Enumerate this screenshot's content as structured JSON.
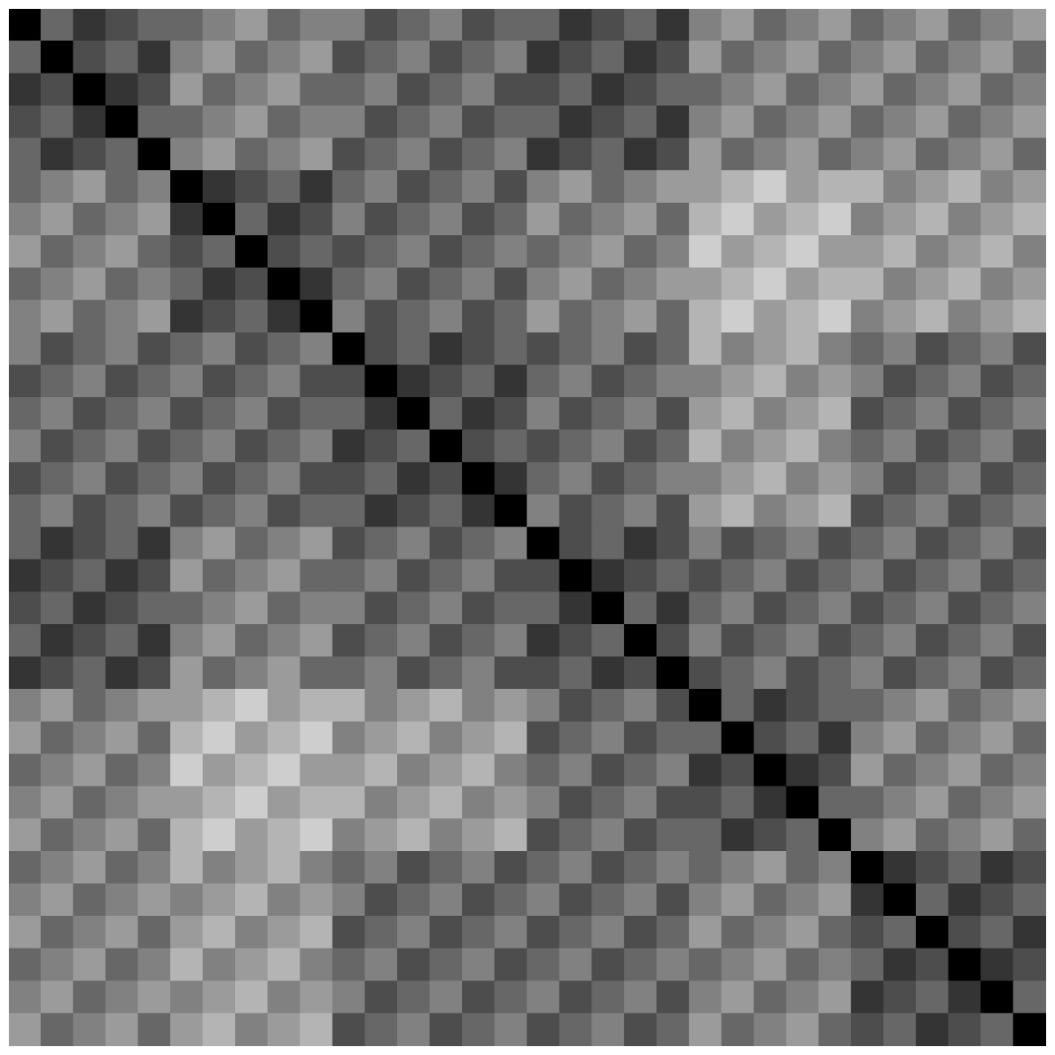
{
  "chart_data": {
    "type": "heatmap",
    "tick_labels": false,
    "value_range": [
      0,
      9
    ],
    "cells": [
      [
        0,
        4,
        2,
        3,
        4,
        4,
        5,
        6,
        4,
        5,
        5,
        3,
        4,
        5,
        3,
        4,
        4,
        2,
        3,
        4,
        2,
        5,
        6,
        4,
        5,
        6,
        4,
        5,
        6,
        4,
        5,
        6
      ],
      [
        4,
        0,
        3,
        4,
        2,
        5,
        6,
        4,
        5,
        6,
        3,
        4,
        5,
        3,
        4,
        5,
        2,
        3,
        4,
        2,
        3,
        6,
        4,
        5,
        6,
        4,
        5,
        6,
        4,
        5,
        6,
        4
      ],
      [
        2,
        3,
        0,
        2,
        3,
        6,
        4,
        5,
        6,
        4,
        4,
        5,
        3,
        4,
        5,
        3,
        3,
        4,
        2,
        3,
        4,
        4,
        5,
        6,
        4,
        5,
        6,
        4,
        5,
        6,
        4,
        5
      ],
      [
        3,
        4,
        2,
        0,
        4,
        4,
        5,
        6,
        4,
        5,
        5,
        3,
        4,
        5,
        3,
        4,
        4,
        2,
        3,
        4,
        2,
        5,
        6,
        4,
        5,
        6,
        4,
        5,
        6,
        4,
        5,
        6
      ],
      [
        4,
        2,
        3,
        4,
        0,
        5,
        6,
        4,
        5,
        6,
        3,
        4,
        5,
        3,
        4,
        5,
        2,
        3,
        4,
        2,
        3,
        6,
        4,
        5,
        6,
        4,
        5,
        6,
        4,
        5,
        6,
        4
      ],
      [
        4,
        5,
        6,
        4,
        5,
        0,
        2,
        3,
        4,
        2,
        4,
        5,
        3,
        4,
        5,
        3,
        5,
        6,
        4,
        5,
        6,
        6,
        7,
        8,
        6,
        7,
        7,
        5,
        6,
        7,
        5,
        6
      ],
      [
        5,
        6,
        4,
        5,
        6,
        2,
        0,
        4,
        2,
        3,
        5,
        3,
        4,
        5,
        3,
        4,
        6,
        4,
        5,
        6,
        4,
        7,
        8,
        6,
        7,
        8,
        5,
        6,
        7,
        5,
        6,
        7
      ],
      [
        6,
        4,
        5,
        6,
        4,
        3,
        4,
        0,
        3,
        4,
        3,
        4,
        5,
        3,
        4,
        5,
        4,
        5,
        6,
        4,
        5,
        8,
        6,
        7,
        8,
        6,
        6,
        7,
        5,
        6,
        7,
        5
      ],
      [
        4,
        5,
        6,
        4,
        5,
        4,
        2,
        3,
        0,
        2,
        4,
        5,
        3,
        4,
        5,
        3,
        5,
        6,
        4,
        5,
        6,
        6,
        7,
        8,
        6,
        7,
        7,
        5,
        6,
        7,
        5,
        6
      ],
      [
        5,
        6,
        4,
        5,
        6,
        2,
        3,
        4,
        2,
        0,
        5,
        3,
        4,
        5,
        3,
        4,
        6,
        4,
        5,
        6,
        4,
        7,
        8,
        6,
        7,
        8,
        5,
        6,
        7,
        5,
        6,
        7
      ],
      [
        5,
        3,
        4,
        5,
        3,
        4,
        5,
        3,
        4,
        5,
        0,
        3,
        4,
        2,
        3,
        4,
        3,
        4,
        5,
        3,
        4,
        7,
        5,
        6,
        7,
        5,
        4,
        5,
        3,
        4,
        5,
        3
      ],
      [
        3,
        4,
        5,
        3,
        4,
        5,
        3,
        4,
        5,
        3,
        3,
        0,
        2,
        3,
        4,
        2,
        4,
        5,
        3,
        4,
        5,
        5,
        6,
        7,
        5,
        6,
        5,
        3,
        4,
        5,
        3,
        4
      ],
      [
        4,
        5,
        3,
        4,
        5,
        3,
        4,
        5,
        3,
        4,
        4,
        2,
        0,
        4,
        2,
        3,
        5,
        3,
        4,
        5,
        3,
        6,
        7,
        5,
        6,
        7,
        3,
        4,
        5,
        3,
        4,
        5
      ],
      [
        5,
        3,
        4,
        5,
        3,
        4,
        5,
        3,
        4,
        5,
        2,
        3,
        4,
        0,
        3,
        4,
        3,
        4,
        5,
        3,
        4,
        7,
        5,
        6,
        7,
        5,
        4,
        5,
        3,
        4,
        5,
        3
      ],
      [
        3,
        4,
        5,
        3,
        4,
        5,
        3,
        4,
        5,
        3,
        3,
        4,
        2,
        3,
        0,
        2,
        4,
        5,
        3,
        4,
        5,
        5,
        6,
        7,
        5,
        6,
        5,
        3,
        4,
        5,
        3,
        4
      ],
      [
        4,
        5,
        3,
        4,
        5,
        3,
        4,
        5,
        3,
        4,
        4,
        2,
        3,
        4,
        2,
        0,
        5,
        3,
        4,
        5,
        3,
        6,
        7,
        5,
        6,
        7,
        3,
        4,
        5,
        3,
        4,
        5
      ],
      [
        4,
        2,
        3,
        4,
        2,
        5,
        6,
        4,
        5,
        6,
        3,
        4,
        5,
        3,
        4,
        5,
        0,
        3,
        4,
        2,
        3,
        5,
        3,
        4,
        5,
        3,
        4,
        5,
        3,
        4,
        5,
        3
      ],
      [
        2,
        3,
        4,
        2,
        3,
        6,
        4,
        5,
        6,
        4,
        4,
        5,
        3,
        4,
        5,
        3,
        3,
        0,
        2,
        3,
        4,
        3,
        4,
        5,
        3,
        4,
        5,
        3,
        4,
        5,
        3,
        4
      ],
      [
        3,
        4,
        2,
        3,
        4,
        4,
        5,
        6,
        4,
        5,
        5,
        3,
        4,
        5,
        3,
        4,
        4,
        2,
        0,
        4,
        2,
        4,
        5,
        3,
        4,
        5,
        3,
        4,
        5,
        3,
        4,
        5
      ],
      [
        4,
        2,
        3,
        4,
        2,
        5,
        6,
        4,
        5,
        6,
        3,
        4,
        5,
        3,
        4,
        5,
        2,
        3,
        4,
        0,
        3,
        5,
        3,
        4,
        5,
        3,
        4,
        5,
        3,
        4,
        5,
        3
      ],
      [
        2,
        3,
        4,
        2,
        3,
        6,
        4,
        5,
        6,
        4,
        4,
        5,
        3,
        4,
        5,
        3,
        3,
        4,
        2,
        3,
        0,
        3,
        4,
        5,
        3,
        4,
        5,
        3,
        4,
        5,
        3,
        4
      ],
      [
        5,
        6,
        4,
        5,
        6,
        6,
        7,
        8,
        6,
        7,
        7,
        5,
        6,
        7,
        5,
        6,
        5,
        3,
        4,
        5,
        3,
        0,
        4,
        2,
        3,
        4,
        4,
        5,
        6,
        4,
        5,
        6
      ],
      [
        6,
        4,
        5,
        6,
        4,
        7,
        8,
        6,
        7,
        8,
        5,
        6,
        7,
        5,
        6,
        7,
        3,
        4,
        5,
        3,
        4,
        4,
        0,
        3,
        4,
        2,
        5,
        6,
        4,
        5,
        6,
        4
      ],
      [
        4,
        5,
        6,
        4,
        5,
        8,
        6,
        7,
        8,
        6,
        6,
        7,
        5,
        6,
        7,
        5,
        4,
        5,
        3,
        4,
        5,
        2,
        3,
        0,
        2,
        3,
        6,
        4,
        5,
        6,
        4,
        5
      ],
      [
        5,
        6,
        4,
        5,
        6,
        6,
        7,
        8,
        6,
        7,
        7,
        5,
        6,
        7,
        5,
        6,
        5,
        3,
        4,
        5,
        3,
        3,
        4,
        2,
        0,
        4,
        4,
        5,
        6,
        4,
        5,
        6
      ],
      [
        6,
        4,
        5,
        6,
        4,
        7,
        8,
        6,
        7,
        8,
        5,
        6,
        7,
        5,
        6,
        7,
        3,
        4,
        5,
        3,
        4,
        4,
        2,
        3,
        4,
        0,
        5,
        6,
        4,
        5,
        6,
        4
      ],
      [
        4,
        5,
        6,
        4,
        5,
        7,
        5,
        6,
        7,
        5,
        4,
        5,
        3,
        4,
        5,
        3,
        4,
        5,
        3,
        4,
        5,
        4,
        5,
        6,
        4,
        5,
        0,
        2,
        3,
        4,
        2,
        3
      ],
      [
        5,
        6,
        4,
        5,
        6,
        5,
        6,
        7,
        5,
        6,
        5,
        3,
        4,
        5,
        3,
        4,
        5,
        3,
        4,
        5,
        3,
        5,
        6,
        4,
        5,
        6,
        2,
        0,
        4,
        2,
        3,
        4
      ],
      [
        6,
        4,
        5,
        6,
        4,
        6,
        7,
        5,
        6,
        7,
        3,
        4,
        5,
        3,
        4,
        5,
        3,
        4,
        5,
        3,
        4,
        6,
        4,
        5,
        6,
        4,
        3,
        4,
        0,
        3,
        4,
        2
      ],
      [
        4,
        5,
        6,
        4,
        5,
        7,
        5,
        6,
        7,
        5,
        4,
        5,
        3,
        4,
        5,
        3,
        4,
        5,
        3,
        4,
        5,
        4,
        5,
        6,
        4,
        5,
        4,
        2,
        3,
        0,
        2,
        3
      ],
      [
        5,
        6,
        4,
        5,
        6,
        5,
        6,
        7,
        5,
        6,
        5,
        3,
        4,
        5,
        3,
        4,
        5,
        3,
        4,
        5,
        3,
        5,
        6,
        4,
        5,
        6,
        2,
        3,
        4,
        2,
        0,
        4
      ],
      [
        6,
        4,
        5,
        6,
        4,
        6,
        7,
        5,
        6,
        7,
        3,
        4,
        5,
        3,
        4,
        5,
        3,
        4,
        5,
        3,
        4,
        6,
        4,
        5,
        6,
        4,
        3,
        4,
        2,
        3,
        4,
        0
      ]
    ]
  }
}
